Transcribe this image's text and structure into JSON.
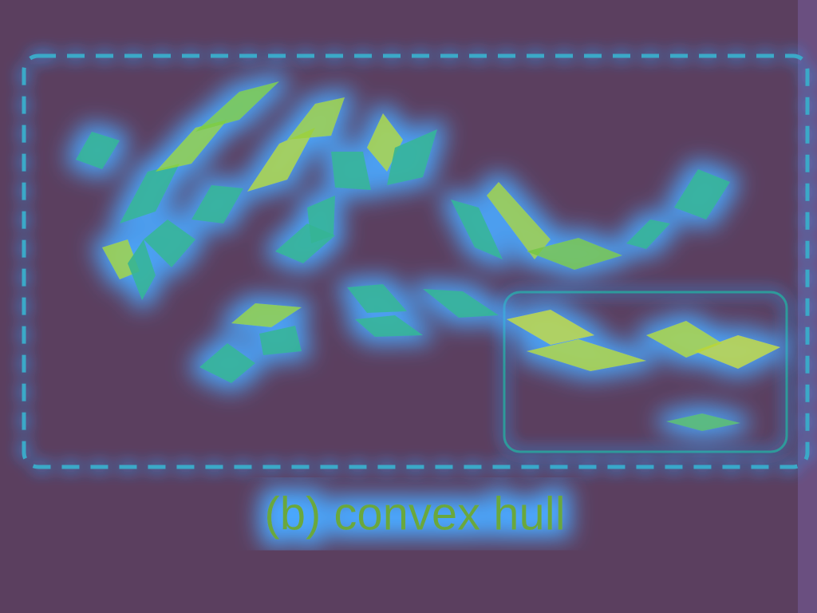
{
  "caption": "(b) convex hull"
}
